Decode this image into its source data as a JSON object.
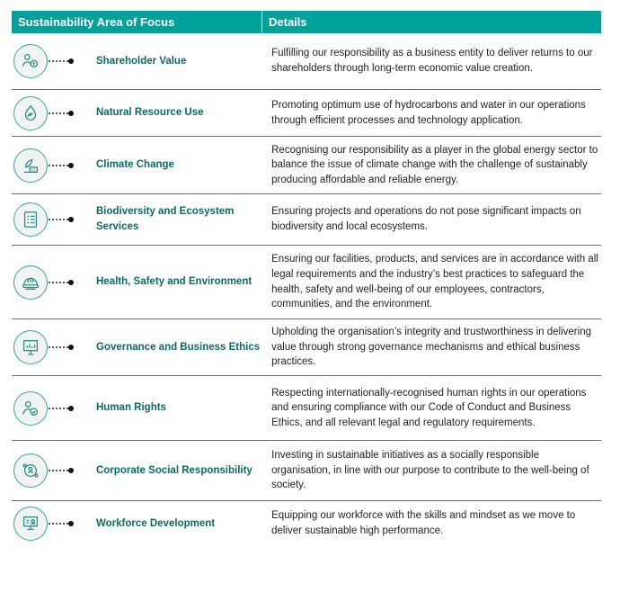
{
  "header": {
    "col1": "Sustainability Area of Focus",
    "col2": "Details"
  },
  "rows": [
    {
      "area": "Shareholder Value",
      "icon": "shareholder-icon",
      "detail": "Fulfilling our responsibility as a business entity to deliver returns to our shareholders through long-term economic value creation."
    },
    {
      "area": "Natural Resource Use",
      "icon": "water-leaf-icon",
      "detail": "Promoting optimum use of hydrocarbons and water in our operations through efficient processes and technology application."
    },
    {
      "area": "Climate Change",
      "icon": "climate-icon",
      "detail": "Recognising our responsibility as a player in the global energy sector to balance the issue of climate change with the challenge of sustainably producing affordable and reliable energy."
    },
    {
      "area": "Biodiversity and Ecosystem Services",
      "icon": "checklist-icon",
      "detail": "Ensuring projects and operations do not pose significant impacts on biodiversity and local ecosystems."
    },
    {
      "area": "Health, Safety and Environment",
      "icon": "hard-hat-icon",
      "detail": "Ensuring our facilities, products, and services are in accordance with all legal requirements and the industry’s best practices to safeguard the health, safety and well-being of our employees, contractors, communities, and the environment."
    },
    {
      "area": "Governance and Business Ethics",
      "icon": "presentation-chart-icon",
      "detail": "Upholding the organisation’s integrity and trustworthiness in delivering value through strong governance mechanisms and ethical business practices."
    },
    {
      "area": "Human Rights",
      "icon": "person-check-icon",
      "detail": "Respecting internationally-recognised human rights in our operations and ensuring compliance with our Code of Conduct and Business Ethics, and all relevant legal and regulatory requirements."
    },
    {
      "area": "Corporate Social Responsibility",
      "icon": "community-icon",
      "detail": "Investing in sustainable initiatives as a socially responsible organisation, in line with our purpose to contribute to the well-being of society."
    },
    {
      "area": "Workforce Development",
      "icon": "training-icon",
      "detail": "Equipping our workforce with the skills and mindset as we move to deliver sustainable high performance."
    }
  ]
}
